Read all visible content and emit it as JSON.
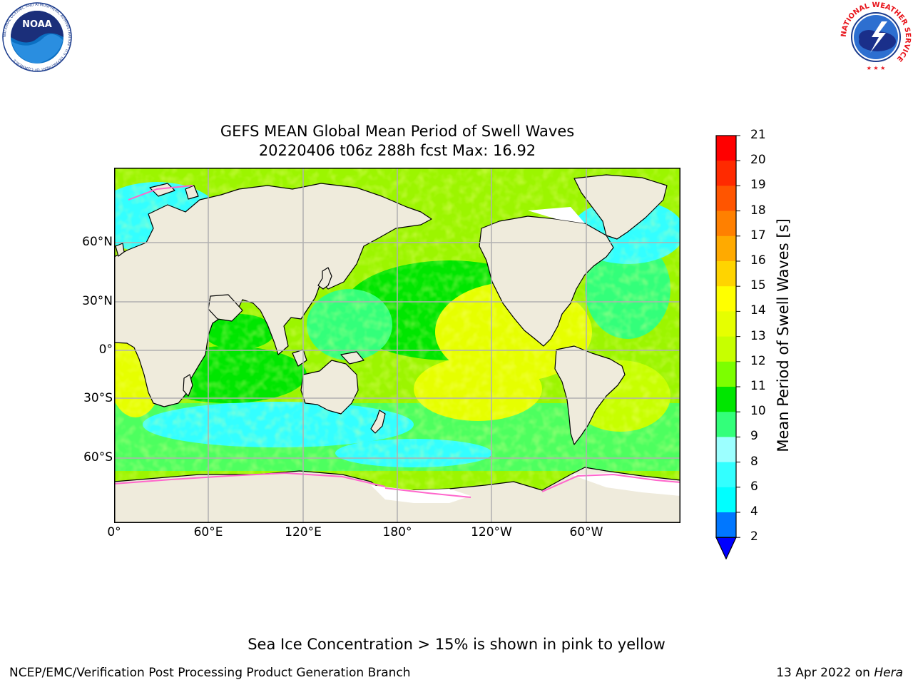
{
  "title": {
    "line1": "GEFS MEAN Global Mean Period of Swell Waves",
    "line2": "20220406 t06z 288h fcst   Max: 16.92"
  },
  "map": {
    "projection": "plate-carree",
    "lon_ticks": [
      "0°",
      "60°E",
      "120°E",
      "180°",
      "120°W",
      "60°W"
    ],
    "lat_ticks": [
      "60°N",
      "30°N",
      "0°",
      "30°S",
      "60°S"
    ],
    "gridlines": true
  },
  "colorbar": {
    "title": "Mean Period of Swell Waves [s]",
    "levels": [
      "21",
      "20",
      "19",
      "18",
      "17",
      "16",
      "15",
      "14",
      "13",
      "12",
      "11",
      "10",
      "9",
      "8",
      "6",
      "4",
      "2"
    ],
    "colors": [
      "#ff0000",
      "#ff2a00",
      "#ff5500",
      "#ff8000",
      "#ffaa00",
      "#ffd400",
      "#ffff00",
      "#e6ff00",
      "#c7ff00",
      "#7cff00",
      "#00e600",
      "#33ff7a",
      "#9cffff",
      "#33ffff",
      "#00ffff",
      "#0077ff"
    ],
    "extend_color": "#0000ff"
  },
  "footer": {
    "note": "Sea Ice Concentration > 15% is shown in pink to yellow",
    "credit": "NCEP/EMC/Verification Post Processing Product Generation Branch",
    "date_prefix": "13 Apr 2022 on ",
    "date_machine": "Hera"
  },
  "logos": {
    "left": {
      "name": "noaa-logo",
      "text": "NOAA",
      "ring_text": "NATIONAL OCEANIC AND ATMOSPHERIC ADMINISTRATION · U.S. DEPARTMENT OF COMMERCE"
    },
    "right": {
      "name": "nws-logo",
      "ring_text": "NATIONAL WEATHER SERVICE"
    }
  },
  "colors": {
    "land": "#efebdc",
    "ice_free": "#ffffff",
    "grid": "#b0b0b0",
    "ice_edge": "#ff66cc"
  }
}
